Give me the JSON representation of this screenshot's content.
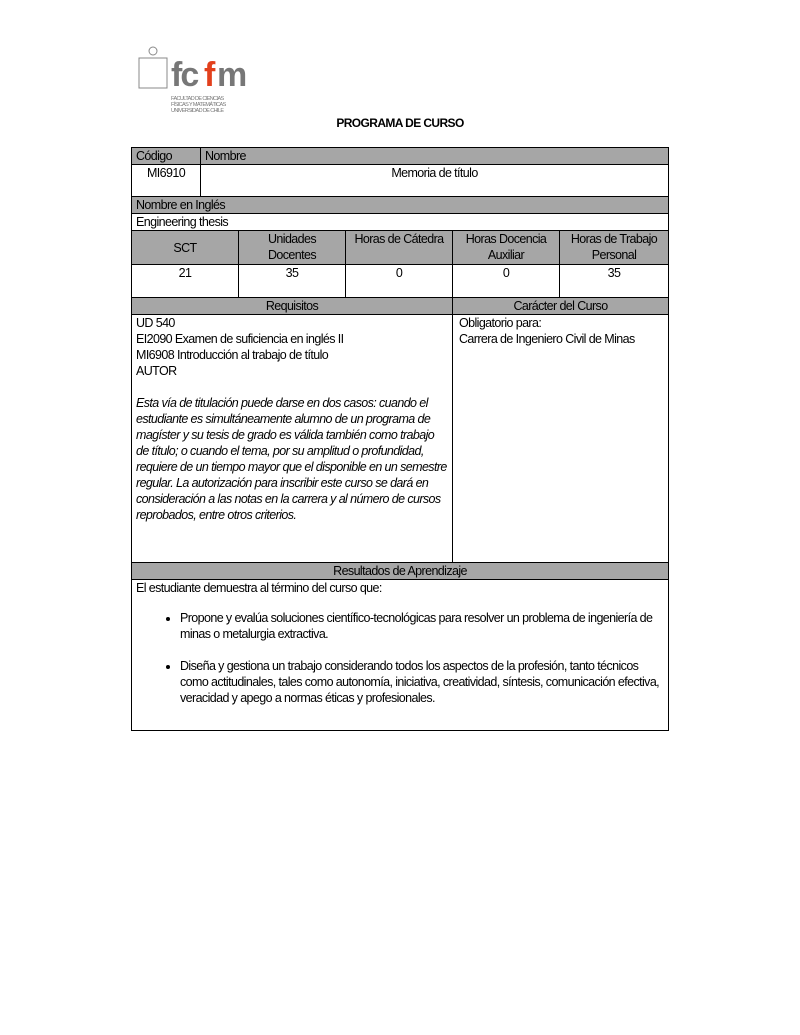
{
  "logo": {
    "text": "fcfm",
    "subtitle": [
      "FACULTAD DE CIENCIAS",
      "FÍSICAS Y MATEMÁTICAS",
      "UNIVERSIDAD DE CHILE"
    ],
    "accent": "#e2401c"
  },
  "title": "PROGRAMA DE CURSO",
  "codigo_label": "Código",
  "nombre_label": "Nombre",
  "codigo": "MI6910",
  "nombre": "Memoria de título",
  "ingles_label": "Nombre en Inglés",
  "ingles": "Engineering thesis",
  "cols": [
    "SCT",
    "Unidades Docentes",
    "Horas de Cátedra",
    "Horas Docencia Auxiliar",
    "Horas de Trabajo Personal"
  ],
  "vals": [
    "21",
    "35",
    "0",
    "0",
    "35"
  ],
  "requisitos_label": "Requisitos",
  "caracter_label": "Carácter del Curso",
  "requisitos": [
    "UD 540",
    "EI2090 Examen de suficiencia en inglés II",
    "MI6908 Introducción al trabajo de título",
    "AUTOR"
  ],
  "nota": "Esta vía de titulación puede darse en dos casos: cuando el estudiante es simultáneamente alumno de un programa de magíster y su tesis de grado es válida también como trabajo de título; o cuando el tema, por su amplitud o profundidad, requiere de un tiempo mayor que el disponible en un semestre regular. La autorización para inscribir este curso se dará en consideración a las notas en la carrera y al número de cursos reprobados, entre otros criterios.",
  "caracter": [
    "Obligatorio para:",
    "Carrera de Ingeniero Civil de Minas"
  ],
  "resultados_label": "Resultados de Aprendizaje",
  "resultados_intro": "El estudiante demuestra al término del curso que:",
  "resultados": [
    "Propone y evalúa soluciones científico-tecnológicas para resolver un problema de ingeniería de minas o metalurgia extractiva.",
    "Diseña y gestiona un trabajo considerando todos los aspectos de la profesión, tanto técnicos como actitudinales, tales como autonomía, iniciativa, creatividad, síntesis, comunicación efectiva, veracidad y apego a normas éticas y profesionales."
  ]
}
